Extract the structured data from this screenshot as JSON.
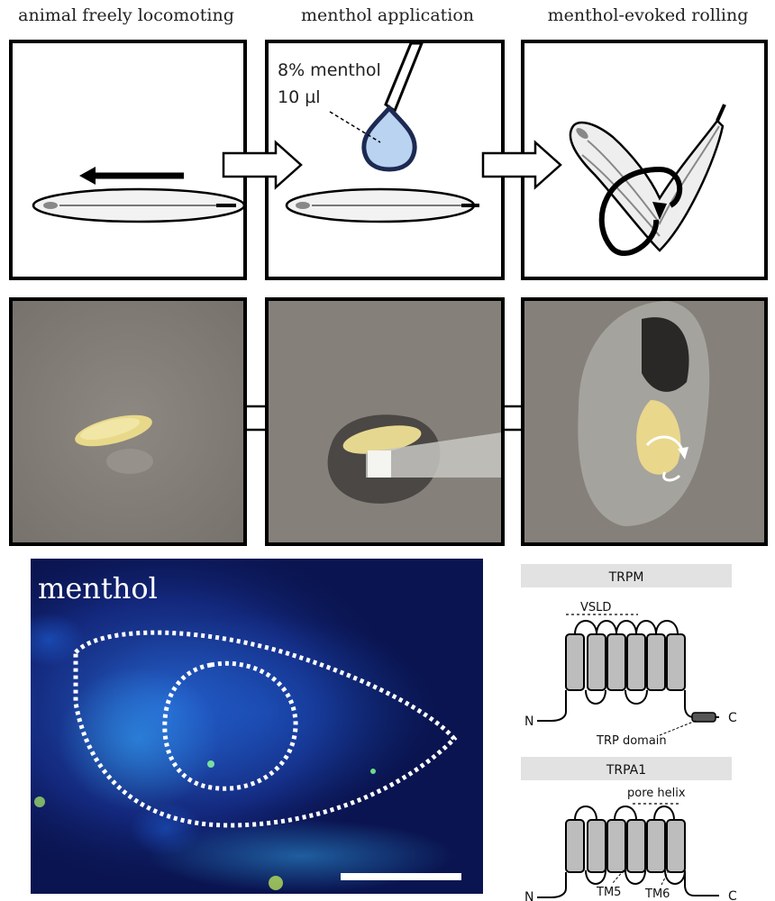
{
  "steps": [
    {
      "title": "animal freely locomoting"
    },
    {
      "title": "menthol application"
    },
    {
      "title": "menthol-evoked rolling"
    }
  ],
  "application": {
    "concentration": "8% menthol",
    "volume": "10 µl"
  },
  "imaging": {
    "label": "menthol"
  },
  "channels": {
    "trpm": {
      "title": "TRPM",
      "vsld": "VSLD",
      "trp_domain": "TRP domain",
      "n_terminus": "N",
      "c_terminus": "C"
    },
    "trpa1": {
      "title": "TRPA1",
      "pore_helix": "pore helix",
      "tm5": "TM5",
      "tm6": "TM6",
      "n_terminus": "N",
      "c_terminus": "C"
    }
  },
  "colors": {
    "droplet_fill": "#b9d3f0",
    "droplet_stroke": "#1c2a52",
    "larva_body": "#f1e6a8",
    "substrate": "#85807a",
    "heatmap_bg": "#0a1450",
    "heatmap_hot": "#39b8ff",
    "channel_bar": "#e2e2e2"
  }
}
